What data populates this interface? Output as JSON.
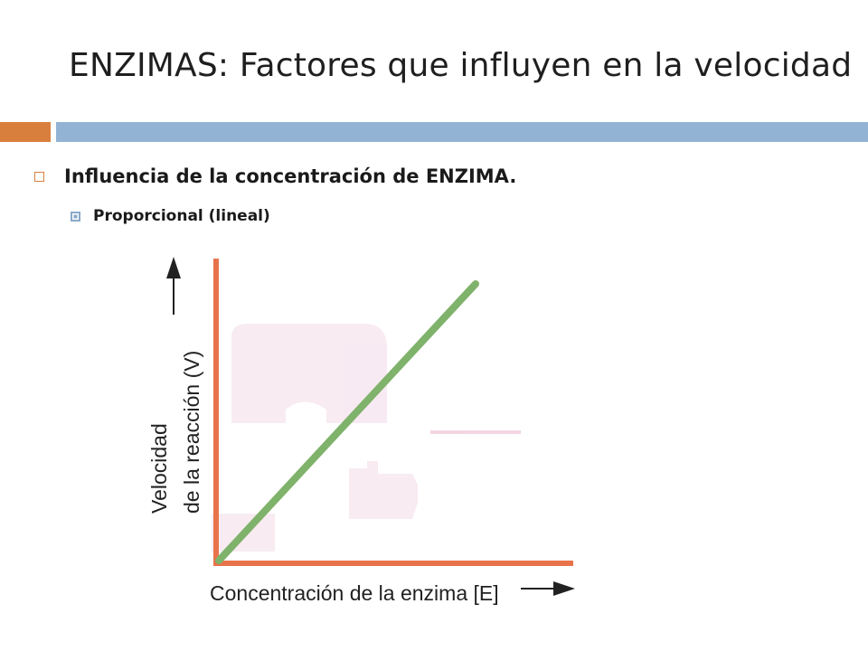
{
  "slide": {
    "title": "ENZIMAS: Factores que influyen en la velocidad",
    "accent_color": "#d97f3d",
    "bar_color": "#93b3d4"
  },
  "bullets": {
    "level1": "Influencia de la concentración de ENZIMA.",
    "level2": "Proporcional (lineal)"
  },
  "figure": {
    "ylabel_line1": "Velocidad",
    "ylabel_line2": "de la reacción (V)",
    "xlabel": "Concentración de la enzima [E]",
    "axis_color": "#e8734a",
    "line_color": "#7fb26a",
    "background_shape_color": "#f6e4ee"
  }
}
